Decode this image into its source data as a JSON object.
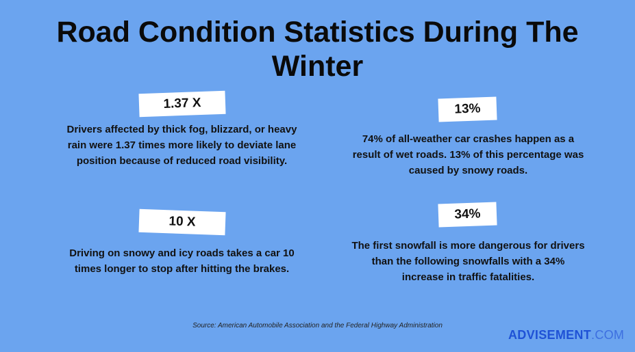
{
  "title": "Road Condition Statistics During The Winter",
  "stats": [
    {
      "label": "1.37 X",
      "text": "Drivers affected by thick fog, blizzard, or heavy rain were 1.37 times more likely to deviate lane position because of reduced road visibility."
    },
    {
      "label": "13%",
      "text": "74% of all-weather car crashes happen as a result of wet roads. 13% of this percentage was caused by snowy roads."
    },
    {
      "label": "10 X",
      "text": "Driving on snowy and icy roads takes a car 10 times longer to stop after hitting the brakes."
    },
    {
      "label": "34%",
      "text": "The first snowfall is more dangerous for drivers than the following snowfalls with a 34% increase in traffic fatalities."
    }
  ],
  "source": "Source: American Automobile Association and the Federal Highway Administration",
  "brand": {
    "name": "ADVISEMENT",
    "suffix": ".COM"
  }
}
